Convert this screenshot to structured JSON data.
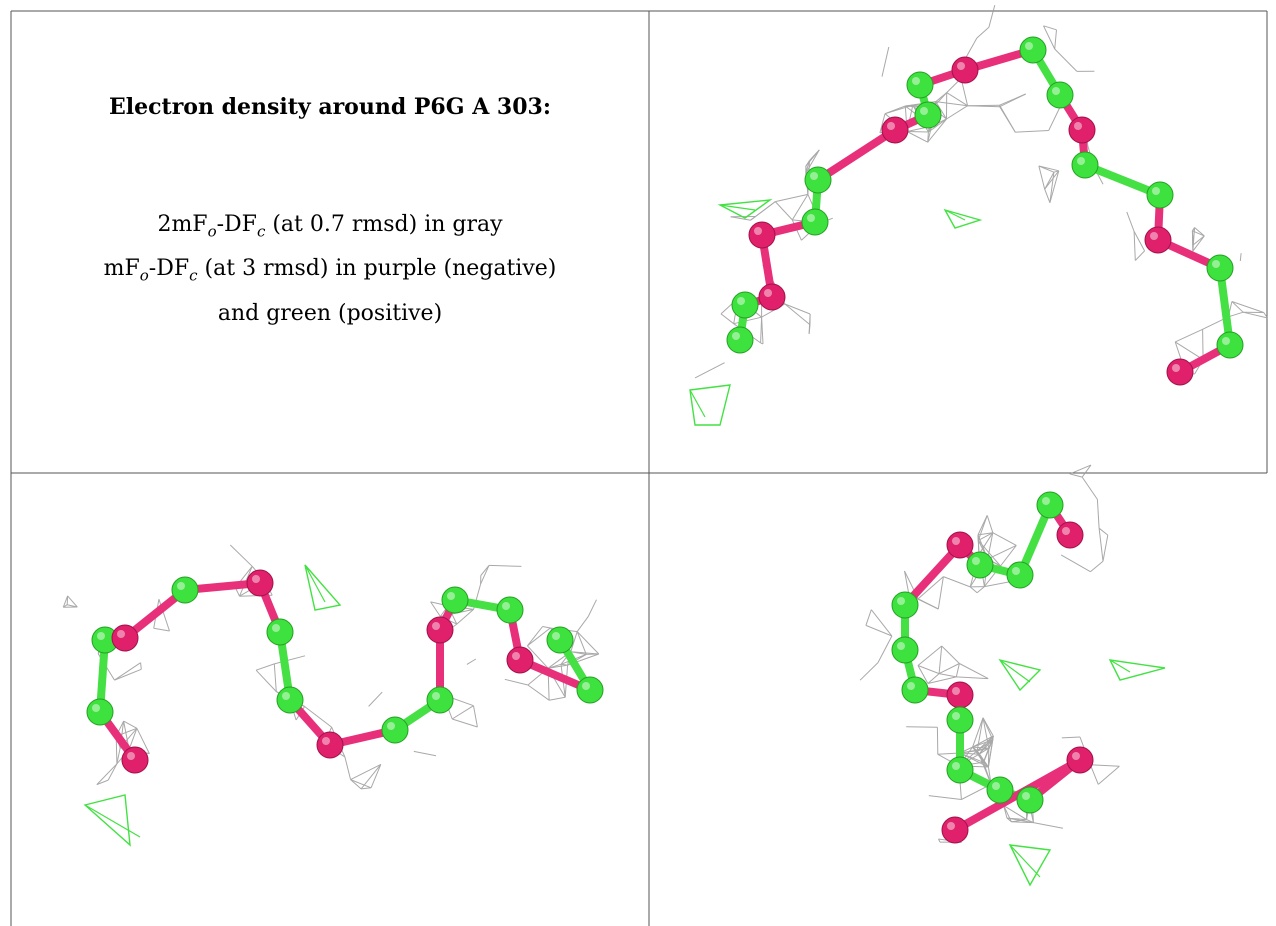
{
  "header": {
    "title": "Electron density around P6G A 303:"
  },
  "caption": {
    "lines": [
      [
        "2mF",
        "o",
        "-DF",
        "c",
        " (at 0.7 rmsd) in gray"
      ],
      [
        "mF",
        "o",
        "-DF",
        "c",
        " (at 3 rmsd) in purple (negative)"
      ],
      [
        "and green (positive)"
      ]
    ]
  }
}
